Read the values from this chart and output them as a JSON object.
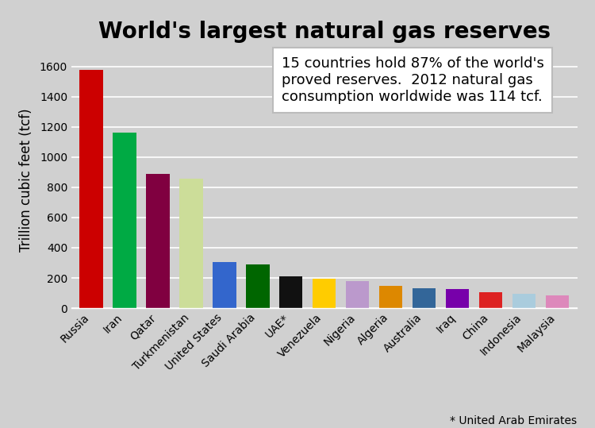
{
  "title": "World's largest natural gas reserves",
  "ylabel": "Trillion cubic feet (tcf)",
  "categories": [
    "Russia",
    "Iran",
    "Qatar",
    "Turkmenistan",
    "United States",
    "Saudi Arabia",
    "UAE*",
    "Venezuela",
    "Nigeria",
    "Algeria",
    "Australia",
    "Iraq",
    "China",
    "Indonesia",
    "Malaysia"
  ],
  "values": [
    1575,
    1163,
    890,
    858,
    304,
    290,
    209,
    195,
    180,
    150,
    130,
    127,
    107,
    95,
    83
  ],
  "colors": [
    "#cc0000",
    "#00aa44",
    "#800040",
    "#ccdd99",
    "#3366cc",
    "#006600",
    "#111111",
    "#ffcc00",
    "#bb99cc",
    "#dd8800",
    "#336699",
    "#7700aa",
    "#dd2222",
    "#aaccdd",
    "#dd88bb"
  ],
  "ylim": [
    0,
    1700
  ],
  "yticks": [
    0,
    200,
    400,
    600,
    800,
    1000,
    1200,
    1400,
    1600
  ],
  "annotation_text": "15 countries hold 87% of the world's\nproved reserves.  2012 natural gas\nconsumption worldwide was 114 tcf.",
  "footnote": "* United Arab Emirates",
  "background_color": "#d0d0d0",
  "plot_bg_color": "#d0d0d0",
  "title_fontsize": 20,
  "axis_label_fontsize": 12,
  "tick_fontsize": 10,
  "annot_fontsize": 13
}
